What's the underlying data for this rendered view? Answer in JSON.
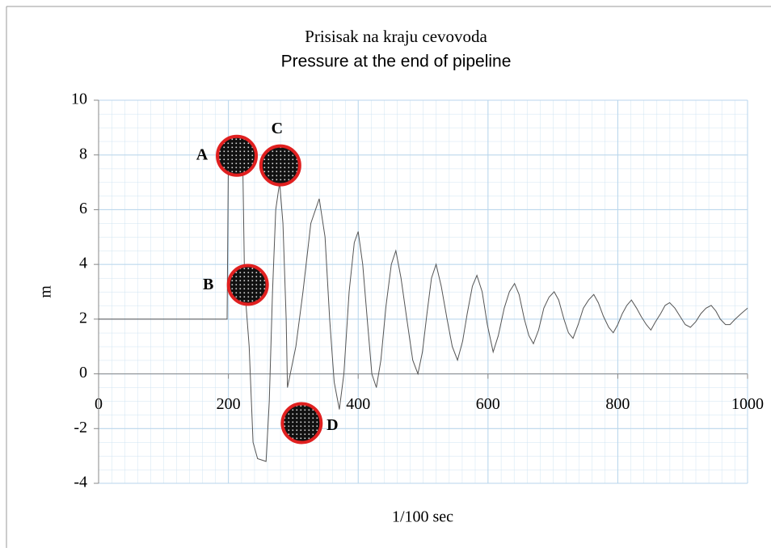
{
  "chart_data": {
    "type": "line",
    "title": "Prisisak na kraju cevovoda",
    "subtitle": "Pressure at the end of pipeline",
    "x_label": "1/100 sec",
    "y_label": "m",
    "xlim": [
      0,
      1000
    ],
    "xticks": [
      0,
      200,
      400,
      600,
      800,
      1000
    ],
    "ylim": [
      -4,
      10
    ],
    "yticks": [
      -4,
      -2,
      0,
      2,
      4,
      6,
      8,
      10
    ],
    "grid": true,
    "color": "#555555",
    "annotations": [
      "A",
      "B",
      "C",
      "D"
    ],
    "x": [
      0,
      198,
      200,
      212,
      222,
      225,
      232,
      238,
      245,
      258,
      263,
      268,
      273,
      279,
      284,
      289,
      291,
      304,
      315,
      327,
      340,
      349,
      356,
      363,
      371,
      378,
      386,
      394,
      400,
      407,
      414,
      421,
      428,
      435,
      443,
      451,
      458,
      466,
      475,
      484,
      492,
      499,
      506,
      513,
      520,
      528,
      537,
      545,
      553,
      561,
      568,
      576,
      583,
      591,
      599,
      608,
      616,
      625,
      633,
      641,
      648,
      656,
      663,
      670,
      678,
      686,
      694,
      702,
      709,
      717,
      724,
      731,
      739,
      747,
      755,
      763,
      770,
      778,
      786,
      793,
      800,
      807,
      814,
      821,
      829,
      836,
      844,
      851,
      858,
      866,
      873,
      880,
      888,
      896,
      904,
      912,
      920,
      928,
      936,
      944,
      951,
      958,
      966,
      973,
      981,
      990,
      1000
    ],
    "values": [
      2,
      2,
      8,
      8.1,
      7.9,
      3.2,
      1,
      -2.5,
      -3.1,
      -3.2,
      -1,
      3,
      6,
      7,
      5.5,
      2,
      -0.5,
      1,
      3,
      5.5,
      6.4,
      5,
      2,
      -0.3,
      -1.3,
      0,
      3,
      4.8,
      5.2,
      4,
      2,
      0,
      -0.5,
      0.5,
      2.5,
      4,
      4.5,
      3.5,
      2,
      0.5,
      0,
      0.8,
      2.2,
      3.5,
      4,
      3.2,
      2,
      1,
      0.5,
      1.2,
      2.2,
      3.2,
      3.6,
      3,
      1.8,
      0.8,
      1.4,
      2.4,
      3,
      3.3,
      2.9,
      2,
      1.4,
      1.1,
      1.6,
      2.4,
      2.8,
      3,
      2.7,
      2,
      1.5,
      1.3,
      1.8,
      2.4,
      2.7,
      2.9,
      2.6,
      2.1,
      1.7,
      1.5,
      1.8,
      2.2,
      2.5,
      2.7,
      2.4,
      2.1,
      1.8,
      1.6,
      1.9,
      2.2,
      2.5,
      2.6,
      2.4,
      2.1,
      1.8,
      1.7,
      1.9,
      2.2,
      2.4,
      2.5,
      2.3,
      2,
      1.8,
      1.8,
      2,
      2.2,
      2.4
    ]
  }
}
